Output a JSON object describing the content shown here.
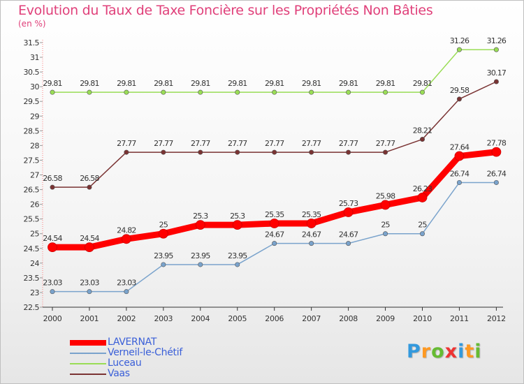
{
  "title": "Evolution du Taux de Taxe Foncière sur les Propriétés Non Bâties",
  "subtitle": "(en %)",
  "chart_data": {
    "type": "line",
    "title": "Evolution du Taux de Taxe Foncière sur les Propriétés Non Bâties",
    "ylabel": "(en %)",
    "xlabel": "",
    "categories": [
      "2000",
      "2001",
      "2002",
      "2003",
      "2004",
      "2005",
      "2006",
      "2007",
      "2008",
      "2009",
      "2010",
      "2011",
      "2012"
    ],
    "ylim": [
      22.5,
      31.5
    ],
    "yticks": [
      "22.5",
      "23",
      "23.5",
      "24",
      "24.5",
      "25",
      "25.5",
      "26",
      "26.5",
      "27",
      "27.5",
      "28",
      "28.5",
      "29",
      "29.5",
      "30",
      "30.5",
      "31",
      "31.5"
    ],
    "grid": false,
    "series": [
      {
        "name": "LAVERNAT",
        "color": "#ff0000",
        "values": [
          24.54,
          24.54,
          24.82,
          25,
          25.3,
          25.3,
          25.35,
          25.35,
          25.73,
          25.98,
          26.23,
          27.64,
          27.78
        ],
        "labels": [
          "24.54",
          "24.54",
          "24.82",
          "25",
          "25.3",
          "25.3",
          "25.35",
          "25.35",
          "25.73",
          "25.98",
          "26.23",
          "27.64",
          "27.78"
        ]
      },
      {
        "name": "Verneil-le-Chétif",
        "color": "#7aa3cc",
        "values": [
          23.03,
          23.03,
          23.03,
          23.95,
          23.95,
          23.95,
          24.67,
          24.67,
          24.67,
          25,
          25,
          26.74,
          26.74
        ],
        "labels": [
          "23.03",
          "23.03",
          "23.03",
          "23.95",
          "23.95",
          "23.95",
          "24.67",
          "24.67",
          "24.67",
          "25",
          "25",
          "26.74",
          "26.74"
        ]
      },
      {
        "name": "Luceau",
        "color": "#99dd55",
        "values": [
          29.81,
          29.81,
          29.81,
          29.81,
          29.81,
          29.81,
          29.81,
          29.81,
          29.81,
          29.81,
          29.81,
          31.26,
          31.26
        ],
        "labels": [
          "29.81",
          "29.81",
          "29.81",
          "29.81",
          "29.81",
          "29.81",
          "29.81",
          "29.81",
          "29.81",
          "29.81",
          "29.81",
          "31.26",
          "31.26"
        ]
      },
      {
        "name": "Vaas",
        "color": "#7a3333",
        "values": [
          26.58,
          26.58,
          27.77,
          27.77,
          27.77,
          27.77,
          27.77,
          27.77,
          27.77,
          27.77,
          28.21,
          29.58,
          30.17
        ],
        "labels": [
          "26.58",
          "26.58",
          "27.77",
          "27.77",
          "27.77",
          "27.77",
          "27.77",
          "27.77",
          "27.77",
          "27.77",
          "28.21",
          "29.58",
          "30.17"
        ]
      }
    ]
  },
  "legend": [
    {
      "name": "LAVERNAT",
      "color": "#ff0000"
    },
    {
      "name": "Verneil-le-Chétif",
      "color": "#7aa3cc"
    },
    {
      "name": "Luceau",
      "color": "#99dd55"
    },
    {
      "name": "Vaas",
      "color": "#7a3333"
    }
  ],
  "logo": {
    "text": "Proxiti",
    "letters": [
      "P",
      "r",
      "o",
      "x",
      "i",
      "t",
      "i"
    ],
    "colors": [
      "#3399dd",
      "#ff9922",
      "#66bb33",
      "#ee3333",
      "#3399dd",
      "#ff9922",
      "#66bb33"
    ]
  }
}
